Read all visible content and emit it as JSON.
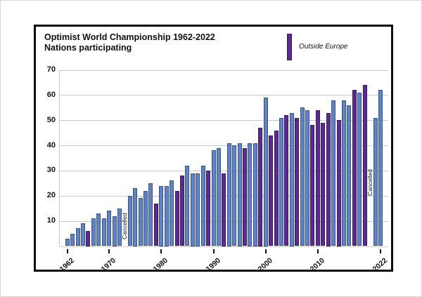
{
  "figure": {
    "title_line1": "Optimist World Championship 1962-2022",
    "title_line2": "Nations participating",
    "legend": {
      "label": "Outside Europe"
    }
  },
  "colors": {
    "bar_europe_blue": "#5f83c3",
    "bar_outside_purple": "#5b2b93",
    "gridline_gray": "#c9c9c9",
    "frame_black": "#0d0d0d"
  },
  "chart_data": {
    "type": "bar",
    "title": "Optimist World Championship 1962-2022",
    "subtitle": "Nations participating",
    "legend": [
      {
        "label": "Outside Europe",
        "color": "#5b2b93"
      }
    ],
    "ylabel": "",
    "xlabel": "",
    "ylim": [
      0,
      70
    ],
    "y_ticks": [
      70,
      60,
      50,
      40,
      30,
      20,
      10
    ],
    "x_tick_years": [
      1962,
      1970,
      1980,
      1990,
      2000,
      2010,
      2022
    ],
    "grid": "horizontal",
    "cancelled_label": "Cancelled",
    "bars": [
      {
        "year": 1962,
        "value": 3,
        "outside": false
      },
      {
        "year": 1963,
        "value": 5,
        "outside": false
      },
      {
        "year": 1964,
        "value": 7,
        "outside": false
      },
      {
        "year": 1965,
        "value": 9,
        "outside": false
      },
      {
        "year": 1966,
        "value": 6,
        "outside": true
      },
      {
        "year": 1967,
        "value": 11,
        "outside": false
      },
      {
        "year": 1968,
        "value": 13,
        "outside": false
      },
      {
        "year": 1969,
        "value": 11,
        "outside": false
      },
      {
        "year": 1970,
        "value": 14,
        "outside": false
      },
      {
        "year": 1971,
        "value": 12,
        "outside": false
      },
      {
        "year": 1972,
        "value": 15,
        "outside": false
      },
      {
        "year": 1973,
        "cancelled": true
      },
      {
        "year": 1974,
        "value": 20,
        "outside": false
      },
      {
        "year": 1975,
        "value": 23,
        "outside": false
      },
      {
        "year": 1976,
        "value": 19,
        "outside": false
      },
      {
        "year": 1977,
        "value": 22,
        "outside": false
      },
      {
        "year": 1978,
        "value": 25,
        "outside": false
      },
      {
        "year": 1979,
        "value": 17,
        "outside": true
      },
      {
        "year": 1980,
        "value": 24,
        "outside": false
      },
      {
        "year": 1981,
        "value": 24,
        "outside": false
      },
      {
        "year": 1982,
        "value": 26,
        "outside": false
      },
      {
        "year": 1983,
        "value": 22,
        "outside": true
      },
      {
        "year": 1984,
        "value": 28,
        "outside": true
      },
      {
        "year": 1985,
        "value": 32,
        "outside": false
      },
      {
        "year": 1986,
        "value": 29,
        "outside": false
      },
      {
        "year": 1987,
        "value": 29,
        "outside": false
      },
      {
        "year": 1988,
        "value": 32,
        "outside": false
      },
      {
        "year": 1989,
        "value": 30,
        "outside": true
      },
      {
        "year": 1990,
        "value": 38,
        "outside": false
      },
      {
        "year": 1991,
        "value": 39,
        "outside": false
      },
      {
        "year": 1992,
        "value": 29,
        "outside": true
      },
      {
        "year": 1993,
        "value": 41,
        "outside": false
      },
      {
        "year": 1994,
        "value": 40,
        "outside": false
      },
      {
        "year": 1995,
        "value": 41,
        "outside": false
      },
      {
        "year": 1996,
        "value": 39,
        "outside": true
      },
      {
        "year": 1997,
        "value": 41,
        "outside": false
      },
      {
        "year": 1998,
        "value": 41,
        "outside": false
      },
      {
        "year": 1999,
        "value": 47,
        "outside": true
      },
      {
        "year": 2000,
        "value": 59,
        "outside": false
      },
      {
        "year": 2001,
        "value": 44,
        "outside": true
      },
      {
        "year": 2002,
        "value": 46,
        "outside": true
      },
      {
        "year": 2003,
        "value": 51,
        "outside": false
      },
      {
        "year": 2004,
        "value": 52,
        "outside": true
      },
      {
        "year": 2005,
        "value": 53,
        "outside": false
      },
      {
        "year": 2006,
        "value": 51,
        "outside": true
      },
      {
        "year": 2007,
        "value": 55,
        "outside": false
      },
      {
        "year": 2008,
        "value": 54,
        "outside": false
      },
      {
        "year": 2009,
        "value": 48,
        "outside": true
      },
      {
        "year": 2010,
        "value": 54,
        "outside": true
      },
      {
        "year": 2011,
        "value": 49,
        "outside": true
      },
      {
        "year": 2012,
        "value": 53,
        "outside": true
      },
      {
        "year": 2013,
        "value": 58,
        "outside": false
      },
      {
        "year": 2014,
        "value": 50,
        "outside": true
      },
      {
        "year": 2015,
        "value": 58,
        "outside": false
      },
      {
        "year": 2016,
        "value": 56,
        "outside": false
      },
      {
        "year": 2017,
        "value": 62,
        "outside": true
      },
      {
        "year": 2018,
        "value": 61,
        "outside": false
      },
      {
        "year": 2019,
        "value": 64,
        "outside": true
      },
      {
        "year": 2020,
        "cancelled": true
      },
      {
        "year": 2021,
        "value": 51,
        "outside": false
      },
      {
        "year": 2022,
        "value": 62,
        "outside": false
      }
    ]
  }
}
